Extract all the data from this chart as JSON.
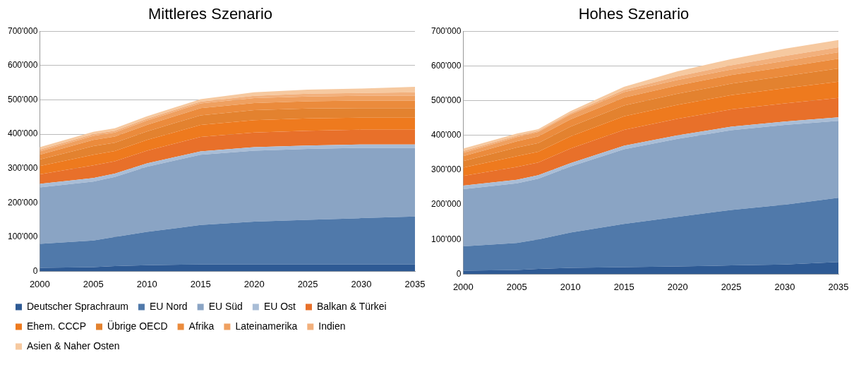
{
  "chart_data": [
    {
      "type": "area",
      "title": "Mittleres Szenario",
      "stacked": true,
      "grid": "y",
      "legend": "bottom",
      "x": [
        2000,
        2005,
        2007,
        2010,
        2015,
        2020,
        2025,
        2030,
        2035
      ],
      "xlim": [
        2000,
        2035
      ],
      "xticks": [
        2000,
        2005,
        2010,
        2015,
        2020,
        2025,
        2030,
        2035
      ],
      "ylim": [
        0,
        700000
      ],
      "yticks": [
        {
          "value": 0,
          "label": "0"
        },
        {
          "value": 100000,
          "label": "100'000"
        },
        {
          "value": 200000,
          "label": "200'000"
        },
        {
          "value": 300000,
          "label": "300'000"
        },
        {
          "value": 400000,
          "label": "400'000"
        },
        {
          "value": 500000,
          "label": "500'000"
        },
        {
          "value": 600000,
          "label": "600'000"
        },
        {
          "value": 700000,
          "label": "700'000"
        }
      ],
      "series": [
        {
          "name": "Deutscher Sprachraum",
          "color": "#2e5a94",
          "values": [
            10000,
            12000,
            15000,
            18000,
            20000,
            20000,
            20000,
            20000,
            20000
          ]
        },
        {
          "name": "EU Nord",
          "color": "#5079aa",
          "values": [
            70000,
            78000,
            85000,
            97000,
            115000,
            125000,
            130000,
            135000,
            140000
          ]
        },
        {
          "name": "EU Süd",
          "color": "#8aa4c4",
          "values": [
            165000,
            172000,
            175000,
            190000,
            205000,
            207000,
            207000,
            205000,
            200000
          ]
        },
        {
          "name": "EU Ost",
          "color": "#a9bdd6",
          "values": [
            10000,
            10000,
            10000,
            10000,
            10000,
            10000,
            10000,
            10000,
            10000
          ]
        },
        {
          "name": "Balkan & Türkei",
          "color": "#e8702a",
          "values": [
            28000,
            37000,
            36000,
            37000,
            42000,
            43000,
            43000,
            43000,
            43000
          ]
        },
        {
          "name": "Ehem. CCCP",
          "color": "#ee7a1e",
          "values": [
            24000,
            31000,
            30000,
            31000,
            35000,
            36000,
            36000,
            35000,
            35000
          ]
        },
        {
          "name": "Übrige OECD",
          "color": "#e3822f",
          "values": [
            19000,
            25000,
            24000,
            25000,
            28000,
            29000,
            29000,
            28000,
            28000
          ]
        },
        {
          "name": "Afrika",
          "color": "#eb8b3c",
          "values": [
            14000,
            18000,
            18000,
            19000,
            21000,
            21000,
            21000,
            22000,
            22000
          ]
        },
        {
          "name": "Lateinamerika",
          "color": "#efa060",
          "values": [
            10000,
            12000,
            12000,
            13000,
            14000,
            14000,
            14000,
            14000,
            14000
          ]
        },
        {
          "name": "Indien",
          "color": "#f2b07c",
          "values": [
            5000,
            5000,
            5000,
            5000,
            5000,
            7000,
            8000,
            8000,
            10000
          ]
        },
        {
          "name": "Asien & Naher Osten",
          "color": "#f6c9a0",
          "values": [
            7000,
            7000,
            7000,
            7000,
            7000,
            10000,
            12000,
            13000,
            16000
          ]
        }
      ]
    },
    {
      "type": "area",
      "title": "Hohes Szenario",
      "stacked": true,
      "grid": "y",
      "x": [
        2000,
        2005,
        2007,
        2010,
        2015,
        2020,
        2025,
        2030,
        2035
      ],
      "xlim": [
        2000,
        2035
      ],
      "xticks": [
        2000,
        2005,
        2010,
        2015,
        2020,
        2025,
        2030,
        2035
      ],
      "ylim": [
        0,
        700000
      ],
      "yticks": [
        {
          "value": 0,
          "label": "0"
        },
        {
          "value": 100000,
          "label": "100'000"
        },
        {
          "value": 200000,
          "label": "200'000"
        },
        {
          "value": 300000,
          "label": "300'000"
        },
        {
          "value": 400000,
          "label": "400'000"
        },
        {
          "value": 500000,
          "label": "500'000"
        },
        {
          "value": 600000,
          "label": "600'000"
        },
        {
          "value": 700000,
          "label": "700'000"
        }
      ],
      "series": [
        {
          "color": "#2e5a94",
          "values": [
            10000,
            12000,
            15000,
            18000,
            20000,
            22000,
            25000,
            28000,
            35000
          ]
        },
        {
          "color": "#5079aa",
          "values": [
            70000,
            78000,
            85000,
            102000,
            125000,
            143000,
            160000,
            172000,
            185000
          ]
        },
        {
          "color": "#8aa4c4",
          "values": [
            165000,
            172000,
            175000,
            190000,
            215000,
            225000,
            230000,
            230000,
            222000
          ]
        },
        {
          "color": "#a9bdd6",
          "values": [
            10000,
            10000,
            10000,
            10000,
            10000,
            10000,
            10000,
            10000,
            10000
          ]
        },
        {
          "color": "#e8702a",
          "values": [
            28000,
            37000,
            37000,
            42000,
            46000,
            48000,
            50000,
            52000,
            56000
          ]
        },
        {
          "color": "#ee7a1e",
          "values": [
            24000,
            31000,
            31000,
            35000,
            39000,
            40000,
            41000,
            44000,
            47000
          ]
        },
        {
          "color": "#e3822f",
          "values": [
            19000,
            25000,
            25000,
            28000,
            31000,
            32000,
            33000,
            35000,
            38000
          ]
        },
        {
          "color": "#eb8b3c",
          "values": [
            14000,
            18000,
            19000,
            21000,
            23000,
            24000,
            25000,
            26000,
            28000
          ]
        },
        {
          "color": "#efa060",
          "values": [
            10000,
            12000,
            13000,
            14000,
            16000,
            16000,
            16000,
            18000,
            19000
          ]
        },
        {
          "color": "#f2b07c",
          "values": [
            5000,
            4000,
            3000,
            4000,
            6000,
            10000,
            12000,
            14000,
            14000
          ]
        },
        {
          "color": "#f6c9a0",
          "values": [
            7000,
            6000,
            5000,
            6000,
            9000,
            15000,
            18000,
            21000,
            21000
          ]
        }
      ]
    }
  ]
}
